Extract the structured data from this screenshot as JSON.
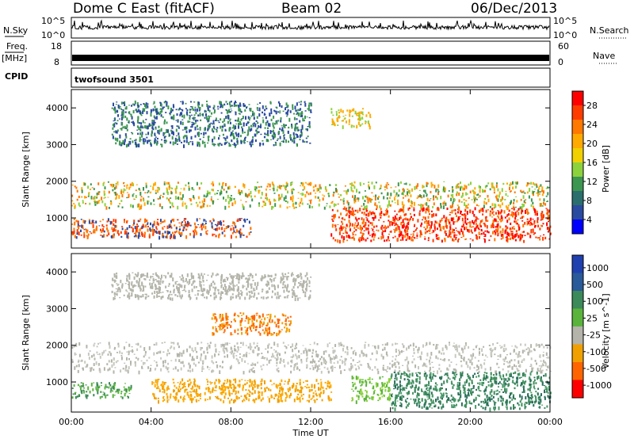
{
  "header": {
    "title": "Dome C East (fitACF)",
    "beam": "Beam 02",
    "date": "06/Dec/2013"
  },
  "top_panels": {
    "nsky_label": "N.Sky",
    "nsky_ticks": [
      "10^5",
      "10^0"
    ],
    "nsearch_label": "N.Search",
    "nsearch_ticks": [
      "10^5",
      "10^0"
    ],
    "freq_label_line1": "Freq.",
    "freq_label_line2": "[MHz]",
    "freq_ticks": [
      "18",
      "8"
    ],
    "nave_label": "Nave",
    "nave_ticks": [
      "60",
      "0"
    ],
    "cpid_label": "CPID",
    "cpid_value": "twofsound 3501"
  },
  "chart_data": [
    {
      "type": "heatmap",
      "name": "power-panel",
      "ylabel": "Slant Range [km]",
      "xlim": [
        "00:00",
        "24:00"
      ],
      "ylim": [
        180,
        4500
      ],
      "yticks": [
        1000,
        2000,
        3000,
        4000
      ],
      "xticks": [
        "00:00",
        "04:00",
        "08:00",
        "12:00",
        "16:00",
        "20:00",
        "00:00"
      ],
      "colorbar": {
        "label": "Power [dB]",
        "ticks": [
          "28",
          "24",
          "20",
          "16",
          "12",
          "8",
          "4"
        ],
        "colors": [
          "#ff0000",
          "#ff3c00",
          "#ff7800",
          "#ffaa00",
          "#f0d000",
          "#8cd23c",
          "#3c9650",
          "#2a6e6e",
          "#2a4aa0",
          "#0000ff"
        ]
      },
      "bands": [
        {
          "t0": 0.0,
          "t1": 24.0,
          "r0": 1300,
          "r1": 2000,
          "desc": "dense scatter",
          "colors": [
            "#ff7800",
            "#ffaa00",
            "#3c9650",
            "#8cd23c"
          ]
        },
        {
          "t0": 0.0,
          "t1": 9.0,
          "r0": 500,
          "r1": 1000,
          "colors": [
            "#ff3c00",
            "#ff7800",
            "#2a4aa0"
          ]
        },
        {
          "t0": 13.0,
          "t1": 24.0,
          "r0": 400,
          "r1": 1300,
          "colors": [
            "#ff0000",
            "#ff3c00",
            "#ff7800"
          ]
        },
        {
          "t0": 2.0,
          "t1": 12.0,
          "r0": 3000,
          "r1": 4200,
          "colors": [
            "#2a4aa0",
            "#3c9650"
          ]
        },
        {
          "t0": 13.0,
          "t1": 15.0,
          "r0": 3500,
          "r1": 4000,
          "colors": [
            "#ffaa00",
            "#8cd23c"
          ]
        }
      ]
    },
    {
      "type": "heatmap",
      "name": "velocity-panel",
      "ylabel": "Slant Range [km]",
      "xlabel": "Time UT",
      "xlim": [
        "00:00",
        "24:00"
      ],
      "ylim": [
        180,
        4500
      ],
      "yticks": [
        1000,
        2000,
        3000,
        4000
      ],
      "xticks": [
        "00:00",
        "04:00",
        "08:00",
        "12:00",
        "16:00",
        "20:00",
        "00:00"
      ],
      "colorbar": {
        "label": "Velocity [m s^-1]",
        "ticks": [
          "1000",
          "500",
          "100",
          "25",
          "-25",
          "-100",
          "-500",
          "-1000"
        ],
        "colors": [
          "#2040b0",
          "#2a5a9a",
          "#3c8a5a",
          "#5ab43c",
          "#b4b4aa",
          "#f0a000",
          "#ff6400",
          "#ff0000"
        ]
      },
      "bands": [
        {
          "t0": 0.0,
          "t1": 24.0,
          "r0": 1300,
          "r1": 2100,
          "colors": [
            "#c8c8c0",
            "#b4b4aa"
          ]
        },
        {
          "t0": 0.0,
          "t1": 3.0,
          "r0": 600,
          "r1": 1000,
          "colors": [
            "#3c8a5a",
            "#5ab43c"
          ]
        },
        {
          "t0": 4.0,
          "t1": 13.0,
          "r0": 500,
          "r1": 1100,
          "colors": [
            "#f0a000",
            "#ffaa00"
          ]
        },
        {
          "t0": 14.0,
          "t1": 16.0,
          "r0": 500,
          "r1": 1200,
          "colors": [
            "#5ab43c",
            "#8cd23c"
          ]
        },
        {
          "t0": 16.0,
          "t1": 24.0,
          "r0": 300,
          "r1": 1300,
          "colors": [
            "#3c8a5a",
            "#2a6e5a",
            "#4a9a6a"
          ]
        },
        {
          "t0": 7.0,
          "t1": 11.0,
          "r0": 2300,
          "r1": 2900,
          "colors": [
            "#f0a000",
            "#ff6400"
          ]
        },
        {
          "t0": 2.0,
          "t1": 12.0,
          "r0": 3300,
          "r1": 4000,
          "colors": [
            "#b4b4aa"
          ]
        }
      ]
    }
  ]
}
